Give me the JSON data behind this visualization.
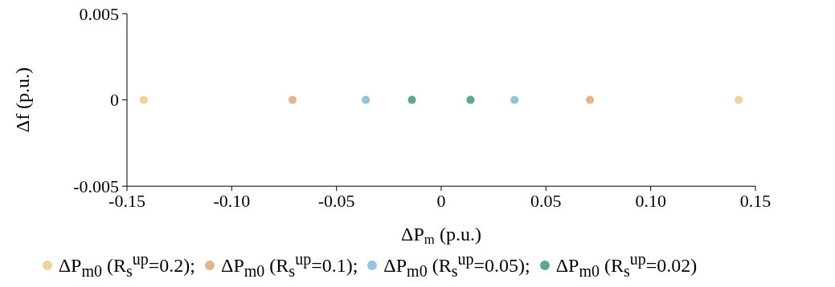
{
  "chart_data": {
    "type": "scatter",
    "xlabel": "ΔP$_{m}$ (p.u.)",
    "ylabel": "Δf (p.u.)",
    "xlim": [
      -0.15,
      0.15
    ],
    "xticks": [
      {
        "value": -0.15,
        "label": "-0.15"
      },
      {
        "value": -0.1,
        "label": "-0.10"
      },
      {
        "value": -0.05,
        "label": "-0.05"
      },
      0,
      0.05,
      {
        "value": 0.1,
        "label": "0.10"
      },
      0.15
    ],
    "ylim": [
      -0.005,
      0.005
    ],
    "yticks": [
      -0.005,
      0,
      0.005
    ],
    "grid": false,
    "legend": "bottom",
    "marker": "circle",
    "series": [
      {
        "name": "ΔP$_{m0}$ (R$_{s}$$^{up}$=0.2);",
        "color": "#ecd49a",
        "x": [
          -0.142,
          0.142
        ],
        "values": [
          0,
          0
        ]
      },
      {
        "name": "ΔP$_{m0}$ (R$_{s}$$^{up}$=0.1);",
        "color": "#e4b48e",
        "x": [
          -0.071,
          0.071
        ],
        "values": [
          0,
          0
        ]
      },
      {
        "name": "ΔP$_{m0}$ (R$_{s}$$^{up}$=0.05);",
        "color": "#94c4dc",
        "x": [
          -0.036,
          0.035
        ],
        "values": [
          0,
          0
        ]
      },
      {
        "name": "ΔP$_{m0}$ (R$_{s}$$^{up}$=0.02)",
        "color": "#5ea88a",
        "x": [
          -0.014,
          0.014
        ],
        "values": [
          0,
          0
        ]
      }
    ]
  }
}
